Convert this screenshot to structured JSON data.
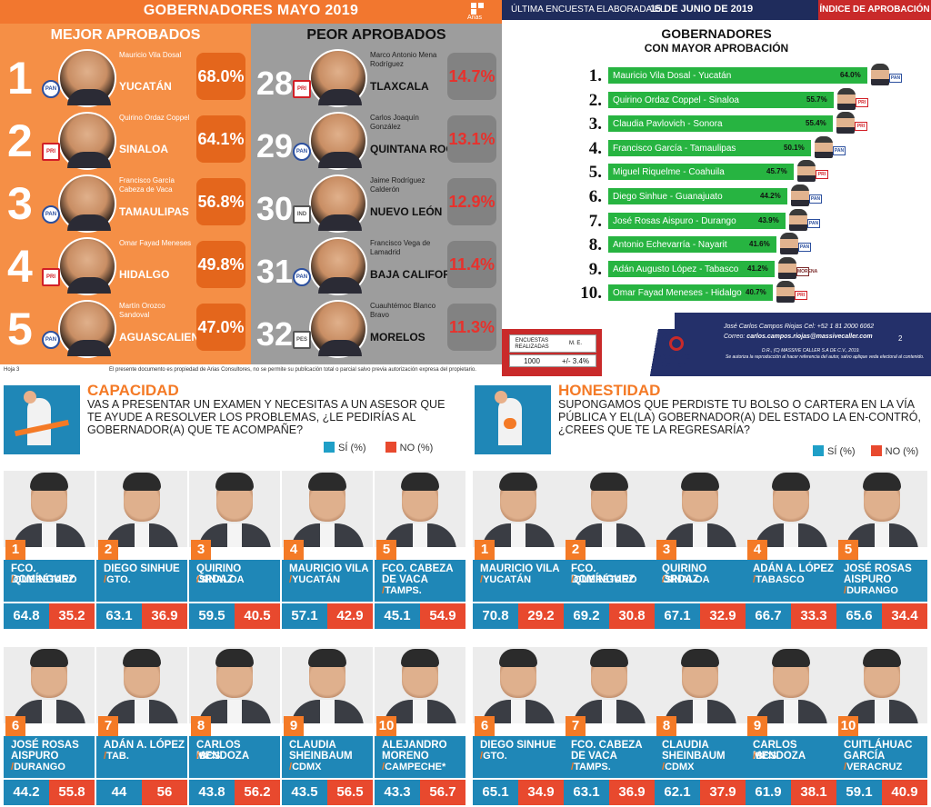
{
  "panel_aprobacion": {
    "title": "GOBERNADORES MAYO 2019",
    "logo_text": "Arias",
    "best_heading": "MEJOR APROBADOS",
    "worst_heading": "PEOR APROBADOS",
    "footer_page": "Hoja 3",
    "footer_note": "El presente documento es propiedad de Arias Consultores, no se permite su publicación total o parcial salvo previa autorización expresa del propietario.",
    "best": [
      {
        "rank": "1",
        "name": "Mauricio Vila Dosal",
        "state": "YUCATÁN",
        "pct": "68.0%",
        "party": "PAN"
      },
      {
        "rank": "2",
        "name": "Quirino Ordaz Coppel",
        "state": "SINALOA",
        "pct": "64.1%",
        "party": "PRI"
      },
      {
        "rank": "3",
        "name": "Francisco García Cabeza de Vaca",
        "state": "TAMAULIPAS",
        "pct": "56.8%",
        "party": "PAN"
      },
      {
        "rank": "4",
        "name": "Omar Fayad Meneses",
        "state": "HIDALGO",
        "pct": "49.8%",
        "party": "PRI"
      },
      {
        "rank": "5",
        "name": "Martín Orozco Sandoval",
        "state": "AGUASCALIENTES",
        "pct": "47.0%",
        "party": "PAN"
      }
    ],
    "worst": [
      {
        "rank": "28",
        "name": "Marco Antonio Mena Rodríguez",
        "state": "TLAXCALA",
        "pct": "14.7%",
        "party": "PRI"
      },
      {
        "rank": "29",
        "name": "Carlos Joaquín González",
        "state": "QUINTANA ROO",
        "pct": "13.1%",
        "party": "PAN"
      },
      {
        "rank": "30",
        "name": "Jaime Rodríguez Calderón",
        "state": "NUEVO LEÓN",
        "pct": "12.9%",
        "party": "IND"
      },
      {
        "rank": "31",
        "name": "Francisco Vega de Lamadrid",
        "state": "BAJA CALIFORNIA",
        "pct": "11.4%",
        "party": "PAN"
      },
      {
        "rank": "32",
        "name": "Cuauhtémoc Blanco Bravo",
        "state": "MORELOS",
        "pct": "11.3%",
        "party": "PES"
      }
    ]
  },
  "panel_massive": {
    "header_lead": "ÚLTIMA ENCUESTA ELABORADA EL",
    "header_date": "15 DE JUNIO DE 2019",
    "header_tag": "ÍNDICE DE APROBACIÓN",
    "title": "GOBERNADORES",
    "subtitle": "CON MAYOR APROBACIÓN",
    "table_h1": "ENCUESTAS REALIZADAS",
    "table_h2": "M. E.",
    "table_v1": "1000",
    "table_v2": "+/- 3.4%",
    "brand": "Massive Caller",
    "contact_line1": "José Carlos Campos Riojas Cel: +52 1 81 2000 6062",
    "contact_line2_label": "Correo:",
    "contact_line2_mail": "carlos.campos.riojas@massivecaller.com",
    "page_number": "2",
    "legal1": "D.R., (C) MASSIVE CALLER S.A DE C.V., 2019.",
    "legal2": "Se autoriza la reproducción al hacer referencia del autor, salvo aplique veda electoral al contenido."
  },
  "chart_data": {
    "type": "bar",
    "title": "GOBERNADORES CON MAYOR APROBACIÓN",
    "orientation": "horizontal",
    "categories": [
      "Mauricio Vila Dosal - Yucatán",
      "Quirino Ordaz Coppel - Sinaloa",
      "Claudia Pavlovich - Sonora",
      "Francisco García - Tamaulipas",
      "Miguel Riquelme - Coahuila",
      "Diego Sinhue - Guanajuato",
      "José Rosas Aispuro - Durango",
      "Antonio Echevarría - Nayarit",
      "Adán Augusto López - Tabasco",
      "Omar Fayad Meneses - Hidalgo"
    ],
    "ranks": [
      "1.",
      "2.",
      "3.",
      "4.",
      "5.",
      "6.",
      "7.",
      "8.",
      "9.",
      "10."
    ],
    "values": [
      64.0,
      55.7,
      55.4,
      50.1,
      45.7,
      44.2,
      43.9,
      41.6,
      41.2,
      40.7
    ],
    "value_labels": [
      "64.0%",
      "55.7%",
      "55.4%",
      "50.1%",
      "45.7%",
      "44.2%",
      "43.9%",
      "41.6%",
      "41.2%",
      "40.7%"
    ],
    "parties": [
      "PAN",
      "PRI",
      "PRI",
      "PAN",
      "PRI",
      "PAN",
      "PAN",
      "PAN",
      "MORENA",
      "PRI"
    ],
    "bar_color": "#27b441"
  },
  "capacidad": {
    "category": "CAPACIDAD",
    "question": "VAS A PRESENTAR UN EXAMEN Y NECESITAS A UN ASESOR QUE TE AYUDE A RESOLVER LOS PROBLEMAS, ¿LE PEDIRÍAS AL GOBERNADOR(A) QUE TE ACOMPAÑE?",
    "legend_si": "SÍ (%)",
    "legend_no": "NO (%)",
    "items": [
      {
        "rank": "1",
        "name": "FCO. DOMÍNGUEZ",
        "state": "QUERÉTARO",
        "si": "64.8",
        "no": "35.2"
      },
      {
        "rank": "2",
        "name": "DIEGO SINHUE",
        "state": "GTO.",
        "si": "63.1",
        "no": "36.9"
      },
      {
        "rank": "3",
        "name": "QUIRINO ORDAZ",
        "state": "SINALOA",
        "si": "59.5",
        "no": "40.5"
      },
      {
        "rank": "4",
        "name": "MAURICIO VILA",
        "state": "YUCATÁN",
        "si": "57.1",
        "no": "42.9"
      },
      {
        "rank": "5",
        "name": "FCO. CABEZA DE VACA",
        "state": "TAMPS.",
        "si": "45.1",
        "no": "54.9"
      },
      {
        "rank": "6",
        "name": "JOSÉ ROSAS AISPURO",
        "state": "DURANGO",
        "si": "44.2",
        "no": "55.8"
      },
      {
        "rank": "7",
        "name": "ADÁN A. LÓPEZ",
        "state": "TAB.",
        "si": "44",
        "no": "56"
      },
      {
        "rank": "8",
        "name": "CARLOS MENDOZA",
        "state": "BCS",
        "si": "43.8",
        "no": "56.2"
      },
      {
        "rank": "9",
        "name": "CLAUDIA SHEINBAUM",
        "state": "CDMX",
        "si": "43.5",
        "no": "56.5"
      },
      {
        "rank": "10",
        "name": "ALEJANDRO MORENO",
        "state": "CAMPECHE*",
        "si": "43.3",
        "no": "56.7"
      }
    ]
  },
  "honestidad": {
    "category": "HONESTIDAD",
    "question": "SUPONGAMOS QUE PERDISTE TU BOLSO O CARTERA EN LA VÍA PÚBLICA Y EL(LA) GOBERNADOR(A) DEL ESTADO LA EN-CONTRÓ, ¿CREES QUE TE LA REGRESARÍA?",
    "legend_si": "SÍ (%)",
    "legend_no": "NO (%)",
    "items": [
      {
        "rank": "1",
        "name": "MAURICIO VILA",
        "state": "YUCATÁN",
        "si": "70.8",
        "no": "29.2"
      },
      {
        "rank": "2",
        "name": "FCO. DOMÍNGUEZ",
        "state": "QUERÉTARO",
        "si": "69.2",
        "no": "30.8"
      },
      {
        "rank": "3",
        "name": "QUIRINO ORDAZ",
        "state": "SINALOA",
        "si": "67.1",
        "no": "32.9"
      },
      {
        "rank": "4",
        "name": "ADÁN A. LÓPEZ",
        "state": "TABASCO",
        "si": "66.7",
        "no": "33.3"
      },
      {
        "rank": "5",
        "name": "JOSÉ ROSAS AISPURO",
        "state": "DURANGO",
        "si": "65.6",
        "no": "34.4"
      },
      {
        "rank": "6",
        "name": "DIEGO SINHUE",
        "state": "GTO.",
        "si": "65.1",
        "no": "34.9"
      },
      {
        "rank": "7",
        "name": "FCO. CABEZA DE VACA",
        "state": "TAMPS.",
        "si": "63.1",
        "no": "36.9"
      },
      {
        "rank": "8",
        "name": "CLAUDIA SHEINBAUM",
        "state": "CDMX",
        "si": "62.1",
        "no": "37.9"
      },
      {
        "rank": "9",
        "name": "CARLOS MENDOZA",
        "state": "BCS",
        "si": "61.9",
        "no": "38.1"
      },
      {
        "rank": "10",
        "name": "CUITLÁHUAC GARCÍA",
        "state": "VERACRUZ",
        "si": "59.1",
        "no": "40.9"
      }
    ]
  }
}
